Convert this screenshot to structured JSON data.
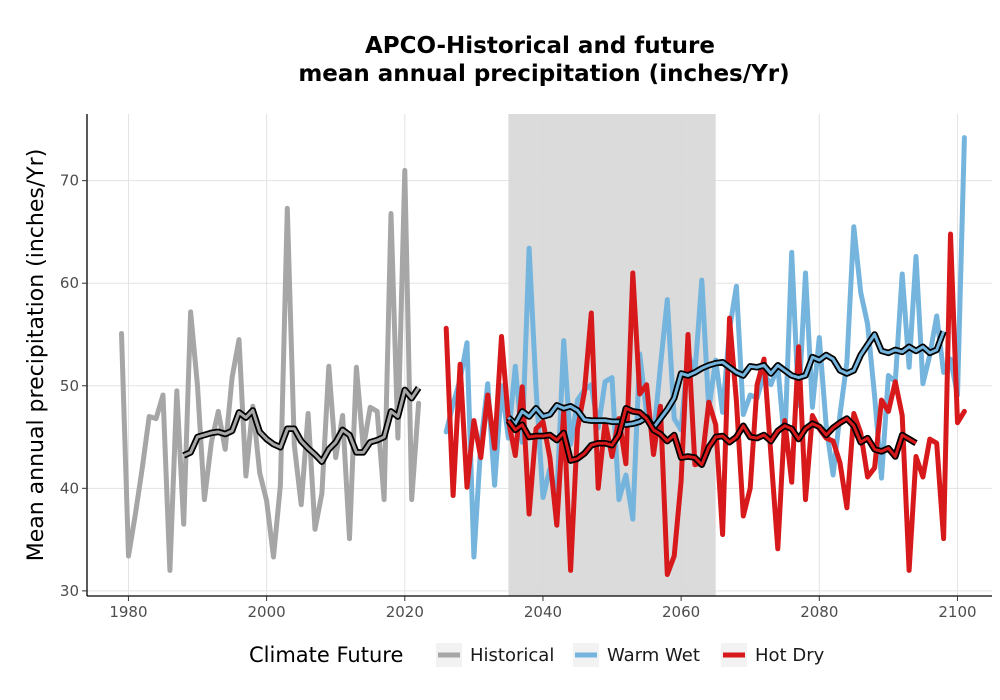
{
  "chart_data": {
    "type": "line",
    "title": [
      "APCO-Historical and future",
      "mean annual precipitation (inches/Yr)"
    ],
    "xlabel": "",
    "ylabel": "Mean annual precipitation (inches/Yr)",
    "xlim": [
      1974,
      2105
    ],
    "ylim": [
      29.5,
      76.5
    ],
    "xticks": [
      1980,
      2000,
      2020,
      2040,
      2060,
      2080,
      2100
    ],
    "yticks": [
      30,
      40,
      50,
      60,
      70
    ],
    "grid": true,
    "reference_period": [
      2035,
      2065
    ],
    "legend": {
      "title": "Climate Future",
      "position": "bottom",
      "entries": [
        {
          "label": "Historical",
          "color": "#a6a6a6"
        },
        {
          "label": "Warm Wet",
          "color": "#74b4dd"
        },
        {
          "label": "Hot Dry",
          "color": "#d7191c"
        }
      ]
    },
    "series": [
      {
        "name": "Historical",
        "color": "#a6a6a6",
        "x_start": 1979,
        "values": [
          55.1,
          33.4,
          37.5,
          42.0,
          47.0,
          46.8,
          49.1,
          32.0,
          49.5,
          36.5,
          57.2,
          50.0,
          38.9,
          44.5,
          47.5,
          43.8,
          50.8,
          54.5,
          41.2,
          48.0,
          41.5,
          38.8,
          33.3,
          40.3,
          67.3,
          44.2,
          38.4,
          47.3,
          36.0,
          39.5,
          51.9,
          43.0,
          47.1,
          35.1,
          51.8,
          43.9,
          47.9,
          47.5,
          38.9,
          66.8,
          44.9,
          71.0,
          38.9,
          48.3
        ],
        "smooth_x_start": 1988,
        "smooth": [
          43.2,
          43.5,
          45.0,
          45.2,
          45.4,
          45.5,
          45.3,
          45.6,
          47.4,
          46.9,
          47.6,
          45.5,
          44.8,
          44.3,
          44.0,
          45.8,
          45.8,
          44.6,
          43.9,
          43.3,
          42.6,
          43.8,
          44.5,
          45.7,
          45.2,
          43.5,
          43.5,
          44.5,
          44.7,
          45.0,
          47.5,
          47.0,
          49.6,
          48.8,
          49.8
        ]
      },
      {
        "name": "Warm Wet",
        "color": "#74b4dd",
        "x_start": 2026,
        "values": [
          45.5,
          48.2,
          50.6,
          54.2,
          33.3,
          44.3,
          50.2,
          40.3,
          50.0,
          44.9,
          51.9,
          44.5,
          63.4,
          49.8,
          39.1,
          41.9,
          39.0,
          54.4,
          44.3,
          48.6,
          49.6,
          50.1,
          45.9,
          50.4,
          50.8,
          38.9,
          41.3,
          37.0,
          53.1,
          47.3,
          44.9,
          51.9,
          58.4,
          46.8,
          45.7,
          53.2,
          51.2,
          60.3,
          47.7,
          52.5,
          47.4,
          55.5,
          59.7,
          47.2,
          49.1,
          48.8,
          51.2,
          50.1,
          51.9,
          44.3,
          63.0,
          48.1,
          61.0,
          47.9,
          54.7,
          46.1,
          41.3,
          47.2,
          52.3,
          65.5,
          59.1,
          56.0,
          49.0,
          41.0,
          51.0,
          50.4,
          60.9,
          51.8,
          62.6,
          50.2,
          53.0,
          56.8,
          51.3,
          52.6,
          49.1,
          74.2
        ],
        "smooth_x_start": 2035,
        "smooth": [
          46.9,
          46.3,
          47.5,
          47.0,
          47.8,
          47.0,
          47.2,
          48.1,
          47.8,
          48.0,
          47.6,
          46.7,
          46.6,
          46.6,
          46.6,
          46.5,
          46.5,
          46.2,
          46.3,
          46.5,
          46.9,
          45.9,
          46.8,
          47.7,
          48.8,
          51.2,
          51.0,
          51.3,
          51.7,
          52.0,
          52.2,
          52.3,
          51.8,
          51.3,
          51.0,
          51.9,
          51.8,
          52.0,
          51.2,
          52.0,
          51.5,
          51.0,
          50.8,
          51.0,
          52.8,
          52.5,
          53.0,
          52.6,
          51.5,
          51.2,
          51.5,
          53.0,
          54.0,
          55.0,
          53.4,
          53.2,
          53.5,
          53.3,
          53.8,
          53.4,
          53.8,
          53.2,
          53.5,
          55.3
        ]
      },
      {
        "name": "Hot Dry",
        "color": "#d7191c",
        "x_start": 2026,
        "values": [
          55.6,
          39.3,
          52.1,
          40.1,
          46.6,
          43.0,
          49.1,
          43.9,
          54.8,
          46.6,
          43.2,
          49.9,
          37.5,
          45.8,
          46.5,
          43.0,
          36.4,
          47.5,
          32.0,
          45.8,
          49.4,
          57.1,
          40.0,
          46.5,
          43.1,
          46.8,
          42.4,
          61.0,
          49.2,
          50.1,
          43.3,
          48.0,
          31.6,
          33.4,
          40.7,
          55.0,
          42.3,
          42.5,
          48.4,
          46.2,
          35.5,
          56.6,
          48.5,
          37.3,
          40.0,
          50.1,
          52.6,
          43.3,
          34.1,
          46.6,
          40.6,
          53.8,
          38.9,
          47.1,
          45.8,
          44.9,
          44.6,
          42.5,
          38.1,
          47.3,
          45.4,
          41.1,
          42.0,
          48.6,
          47.5,
          50.4,
          47.1,
          32.0,
          43.1,
          41.1,
          44.8,
          44.4,
          35.1,
          64.8,
          46.4,
          47.5
        ],
        "smooth_x_start": 2035,
        "smooth": [
          46.6,
          45.7,
          46.2,
          45.0,
          45.1,
          45.1,
          45.2,
          44.7,
          45.4,
          42.7,
          42.9,
          43.4,
          44.2,
          44.4,
          44.4,
          44.2,
          45.2,
          47.8,
          47.5,
          47.4,
          46.8,
          45.7,
          45.3,
          44.6,
          45.2,
          43.0,
          43.1,
          43.0,
          42.3,
          44.0,
          45.0,
          45.1,
          44.5,
          45.0,
          46.1,
          45.0,
          44.9,
          45.2,
          44.6,
          45.6,
          46.1,
          45.8,
          44.8,
          45.8,
          46.3,
          46.0,
          45.2,
          45.9,
          46.4,
          46.8,
          46.1,
          44.5,
          44.9,
          43.8,
          43.6,
          43.9,
          43.1,
          45.2,
          44.8,
          44.4
        ]
      }
    ]
  }
}
